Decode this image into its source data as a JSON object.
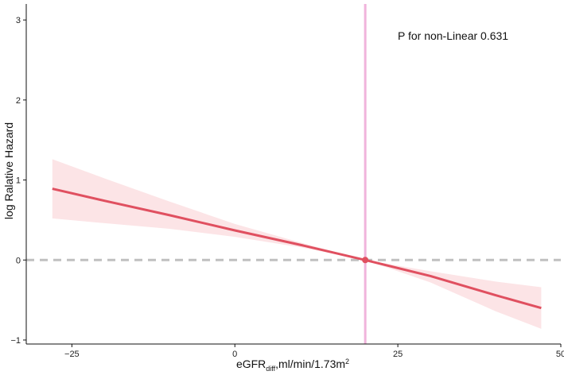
{
  "chart_data": {
    "type": "line",
    "xlabel_main": "eGFR",
    "xlabel_sub": "diff",
    "xlabel_unit": ",ml/min/1.73m",
    "xlabel_sup": "2",
    "ylabel": "log Ralative Hazard",
    "annotation": "P for non-Linear 0.631",
    "xlim": [
      -32,
      50
    ],
    "ylim": [
      -1.05,
      3.2
    ],
    "x_ticks": [
      -25,
      0,
      25,
      50
    ],
    "x_tick_labels": [
      "−25",
      "0",
      "25",
      "50"
    ],
    "y_ticks": [
      -1,
      0,
      1,
      2,
      3
    ],
    "y_tick_labels": [
      "−1",
      "0",
      "1",
      "2",
      "3"
    ],
    "grid": false,
    "series": [
      {
        "x": [
          -28,
          -20,
          -10,
          0,
          10,
          20,
          30,
          40,
          47
        ],
        "y": [
          0.89,
          0.74,
          0.56,
          0.37,
          0.19,
          0.0,
          -0.2,
          -0.44,
          -0.6
        ],
        "upper": [
          1.26,
          1.02,
          0.73,
          0.45,
          0.22,
          0.0,
          -0.14,
          -0.27,
          -0.34
        ],
        "lower": [
          0.52,
          0.46,
          0.39,
          0.29,
          0.16,
          0.0,
          -0.28,
          -0.64,
          -0.86
        ]
      }
    ],
    "reference_x": 20,
    "reference_y": 0,
    "reference_point": [
      20,
      0
    ],
    "colors": {
      "line": "#e05060",
      "band": "#fce4e6",
      "vline": "#f0b4dc",
      "hline": "#c0c0c0",
      "axis": "#111111"
    }
  }
}
